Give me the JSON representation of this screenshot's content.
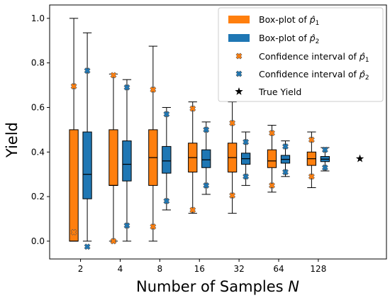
{
  "chart_data": {
    "type": "box",
    "title": "",
    "xlabel": "Number of Samples N",
    "xlabel_parts": {
      "text": "Number of Samples ",
      "italic": "N"
    },
    "ylabel": "Yield",
    "ylim": [
      -0.08,
      1.06
    ],
    "yticks": [
      0.0,
      0.2,
      0.4,
      0.6,
      0.8,
      1.0
    ],
    "ytick_labels": [
      "0.0",
      "0.2",
      "0.4",
      "0.6",
      "0.8",
      "1.0"
    ],
    "categories": [
      "2",
      "4",
      "8",
      "16",
      "32",
      "64",
      "128"
    ],
    "series": [
      {
        "name": "Box-plot of p̂1",
        "legend_label": {
          "prefix": "Box-plot of ",
          "symbol": "p̂",
          "sub": "1"
        },
        "color": "#ff7f0e",
        "boxes": [
          {
            "whislo": 0.0,
            "q1": 0.0,
            "med": 0.0,
            "q3": 0.5,
            "whishi": 1.0
          },
          {
            "whislo": 0.0,
            "q1": 0.25,
            "med": 0.25,
            "q3": 0.5,
            "whishi": 0.75
          },
          {
            "whislo": 0.0,
            "q1": 0.25,
            "med": 0.375,
            "q3": 0.5,
            "whishi": 0.875
          },
          {
            "whislo": 0.125,
            "q1": 0.31,
            "med": 0.375,
            "q3": 0.44,
            "whishi": 0.625
          },
          {
            "whislo": 0.125,
            "q1": 0.31,
            "med": 0.375,
            "q3": 0.44,
            "whishi": 0.625
          },
          {
            "whislo": 0.22,
            "q1": 0.33,
            "med": 0.36,
            "q3": 0.41,
            "whishi": 0.52
          },
          {
            "whislo": 0.24,
            "q1": 0.34,
            "med": 0.37,
            "q3": 0.4,
            "whishi": 0.49
          }
        ],
        "ci": [
          [
            0.04,
            0.695
          ],
          [
            0.0,
            0.745
          ],
          [
            0.065,
            0.68
          ],
          [
            0.14,
            0.595
          ],
          [
            0.205,
            0.53
          ],
          [
            0.25,
            0.485
          ],
          [
            0.29,
            0.455
          ]
        ]
      },
      {
        "name": "Box-plot of p̂2",
        "legend_label": {
          "prefix": "Box-plot of ",
          "symbol": "p̂",
          "sub": "2"
        },
        "color": "#1f77b4",
        "boxes": [
          {
            "whislo": 0.0,
            "q1": 0.19,
            "med": 0.3,
            "q3": 0.49,
            "whishi": 0.935
          },
          {
            "whislo": 0.0,
            "q1": 0.27,
            "med": 0.345,
            "q3": 0.45,
            "whishi": 0.725
          },
          {
            "whislo": 0.14,
            "q1": 0.305,
            "med": 0.36,
            "q3": 0.425,
            "whishi": 0.6
          },
          {
            "whislo": 0.21,
            "q1": 0.33,
            "med": 0.365,
            "q3": 0.41,
            "whishi": 0.535
          },
          {
            "whislo": 0.25,
            "q1": 0.345,
            "med": 0.37,
            "q3": 0.395,
            "whishi": 0.49
          },
          {
            "whislo": 0.29,
            "q1": 0.35,
            "med": 0.367,
            "q3": 0.385,
            "whishi": 0.45
          },
          {
            "whislo": 0.315,
            "q1": 0.357,
            "med": 0.368,
            "q3": 0.38,
            "whishi": 0.42
          }
        ],
        "ci": [
          [
            -0.025,
            0.765
          ],
          [
            0.07,
            0.69
          ],
          [
            0.18,
            0.57
          ],
          [
            0.25,
            0.5
          ],
          [
            0.29,
            0.445
          ],
          [
            0.31,
            0.425
          ],
          [
            0.33,
            0.41
          ]
        ]
      }
    ],
    "ci_legend": [
      {
        "prefix": "Confidence interval of ",
        "symbol": "p̂",
        "sub": "1",
        "color": "#ff7f0e"
      },
      {
        "prefix": "Confidence interval of ",
        "symbol": "p̂",
        "sub": "2",
        "color": "#1f77b4"
      }
    ],
    "true_yield": {
      "name": "True Yield",
      "value": 0.37
    },
    "legend_position": "top-right",
    "grid": false
  }
}
